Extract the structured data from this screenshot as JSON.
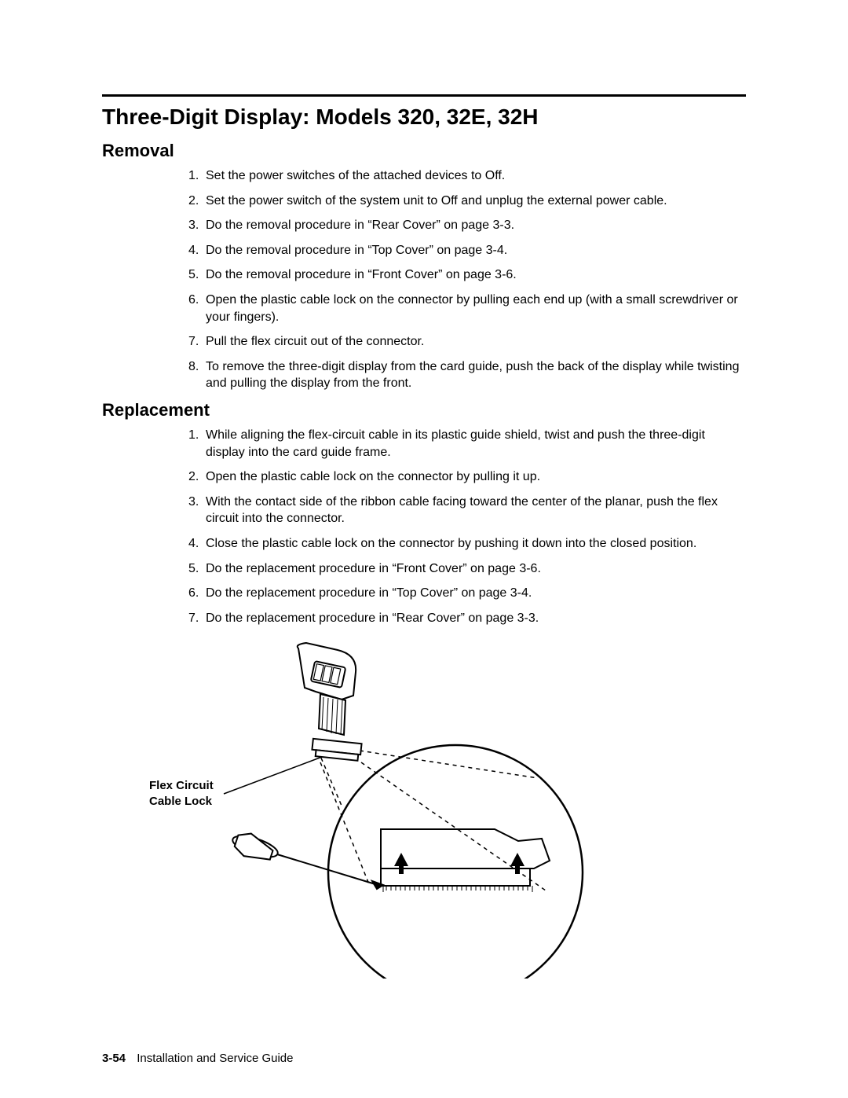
{
  "title": "Three-Digit Display: Models 320, 32E, 32H",
  "sections": {
    "removal": {
      "heading": "Removal",
      "items": [
        "Set the power switches of the attached devices to Off.",
        "Set the power switch of the system unit to Off and unplug the external power cable.",
        "Do the removal procedure in “Rear Cover” on page 3-3.",
        "Do the removal procedure in “Top Cover” on page 3-4.",
        "Do the removal procedure in “Front Cover” on page 3-6.",
        "Open the plastic cable lock on the connector by pulling each end up (with a small screwdriver or your fingers).",
        "Pull the flex circuit out of the connector.",
        "To remove the three-digit display from the card guide, push the back of the display while twisting and pulling the display from the front."
      ]
    },
    "replacement": {
      "heading": "Replacement",
      "items": [
        "While aligning the flex-circuit cable in its plastic guide shield, twist and push the three-digit display into the card guide frame.",
        "Open the plastic cable lock on the connector by pulling it up.",
        "With the contact side of the ribbon cable facing toward the center of the planar, push the flex circuit into the connector.",
        "Close the plastic cable lock on the connector by pushing it down into the closed position.",
        "Do the replacement procedure in “Front Cover” on page 3-6.",
        "Do the replacement procedure in “Top Cover” on page 3-4.",
        "Do the replacement procedure in “Rear Cover” on page 3-3."
      ]
    }
  },
  "figure": {
    "label_line1": "Flex Circuit",
    "label_line2": "Cable Lock",
    "stroke": "#000000",
    "fill": "#ffffff"
  },
  "footer": {
    "page_number": "3-54",
    "book_title": "Installation and Service Guide"
  }
}
